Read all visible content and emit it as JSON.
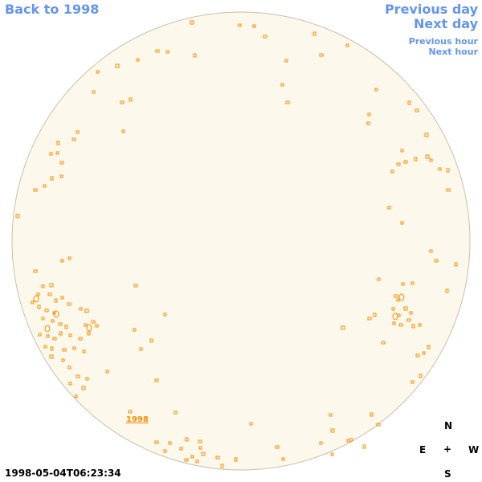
{
  "nav": {
    "back_label": "Back to 1998",
    "prev_day": "Previous day",
    "next_day": "Next day",
    "prev_hour": "Previous hour",
    "next_hour": "Next hour"
  },
  "compass": {
    "n": "N",
    "s": "S",
    "e": "E",
    "w": "W",
    "center": "+"
  },
  "timestamp": "1998-05-04T06:23:34",
  "year_marker": "1998",
  "colors": {
    "link": "#6495ed",
    "disk_fill": "#fdf8ec",
    "disk_edge": "#c9c1ac",
    "sunspot": "#ff8c00"
  }
}
